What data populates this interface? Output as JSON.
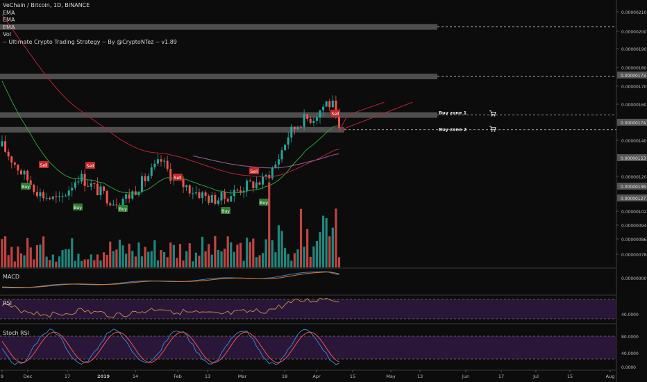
{
  "legend": {
    "title": "VeChain / Bitcoin, 1D, BINANCE",
    "ema1": "EMA",
    "ema2": "EMA",
    "ema3": "EMA",
    "vol": "Vol",
    "strategy": "-- Ultimate Crypto Trading Strategy -- By @CryptoNTez -- v1.89"
  },
  "panes": {
    "macd": {
      "label": "MACD",
      "tick": "0.00000000"
    },
    "rsi": {
      "label": "RSI",
      "tick": "40.0000"
    },
    "stoch": {
      "label": "Stoch RSI",
      "ticks": [
        "80.0000",
        "40.0000",
        "0.0000"
      ]
    }
  },
  "zones": {
    "buy1": "Buy zone 1",
    "buy2": "Buy zone 2"
  },
  "colors": {
    "background": "#0c0c0c",
    "up": "#26a69a",
    "down": "#ef5350",
    "ema_fast": "#2e9e3e",
    "ema_slow": "#b3243a",
    "ema_mid": "#9c5fa0",
    "zone_band": "#5a5a5a",
    "price_tag": "#555555",
    "signal_buy": "#2e7d32",
    "signal_sell": "#c62828",
    "rsi_band": "#2a1638",
    "rsi_line": "#c8924a",
    "macd_line": "#3d7fd1",
    "signal_line": "#e0792a"
  },
  "chart_data": {
    "type": "candlestick",
    "title": "VeChain / Bitcoin, 1D, BINANCE",
    "y_axis": {
      "range": [
        7e-07,
        2.13e-06
      ],
      "ticks": [
        "0.00000210",
        "0.00000200",
        "0.00000190",
        "0.00000180",
        "0.00000170",
        "0.00000160",
        "0.00000140",
        "0.00000120",
        "0.00000102",
        "0.00000094",
        "0.00000086",
        "0.00000078"
      ],
      "price_tags": [
        "0.00000173",
        "0.00000174",
        "0.00000153",
        "0.00000136",
        "0.00000127"
      ]
    },
    "x_axis": {
      "ticks": [
        "9",
        "Dec",
        "17",
        "2019",
        "14",
        "Feb",
        "13",
        "Mar",
        "18",
        "Apr",
        "15",
        "May",
        "13",
        "Jun",
        "17",
        "Jul",
        "15",
        "Aug"
      ]
    },
    "zones": [
      2.01e-06,
      1.74e-06,
      1.53e-06,
      1.45e-06
    ],
    "signals": [
      {
        "label": "Sell"
      },
      {
        "label": "Buy"
      },
      {
        "label": "Buy"
      },
      {
        "label": "Sell"
      },
      {
        "label": "Buy"
      },
      {
        "label": "Sell"
      },
      {
        "label": "Buy"
      },
      {
        "label": "Sell"
      },
      {
        "label": "Buy"
      },
      {
        "label": "Sell"
      }
    ]
  }
}
